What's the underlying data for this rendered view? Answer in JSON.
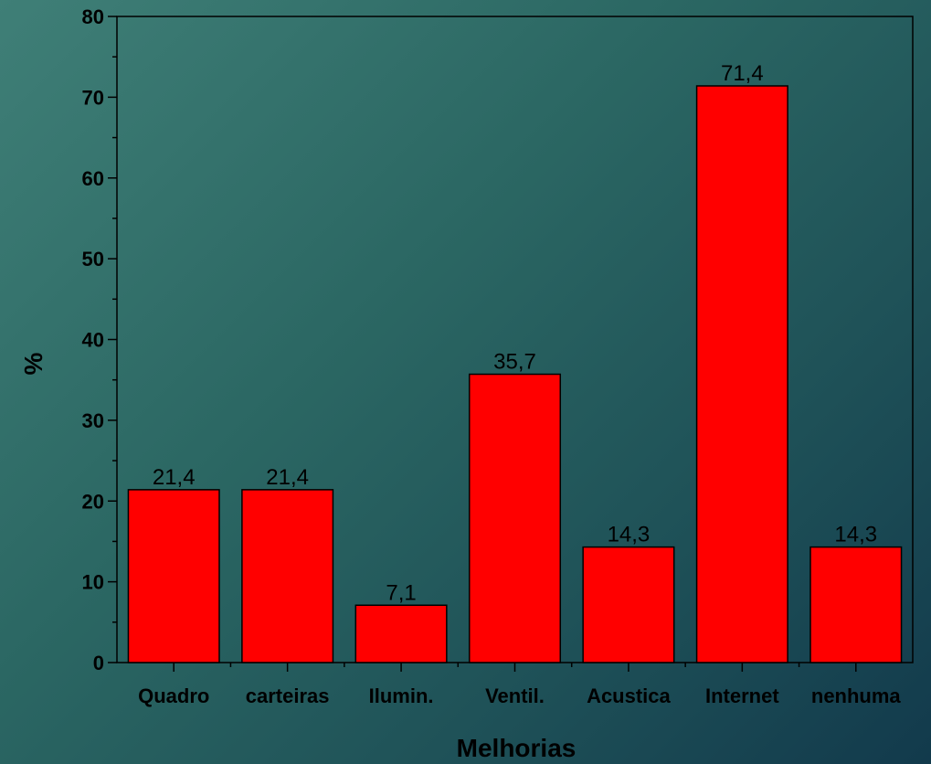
{
  "chart_data": {
    "type": "bar",
    "categories": [
      "Quadro",
      "carteiras",
      "Ilumin.",
      "Ventil.",
      "Acustica",
      "Internet",
      "nenhuma"
    ],
    "values": [
      21.4,
      21.4,
      7.1,
      35.7,
      14.3,
      71.4,
      14.3
    ],
    "value_labels": [
      "21,4",
      "21,4",
      "7,1",
      "35,7",
      "14,3",
      "71,4",
      "14,3"
    ],
    "xlabel": "Melhorias",
    "ylabel": "%",
    "ylim": [
      0,
      80
    ],
    "yticks": [
      0,
      10,
      20,
      30,
      40,
      50,
      60,
      70,
      80
    ],
    "grid": false,
    "bar_color": "#ff0000"
  }
}
